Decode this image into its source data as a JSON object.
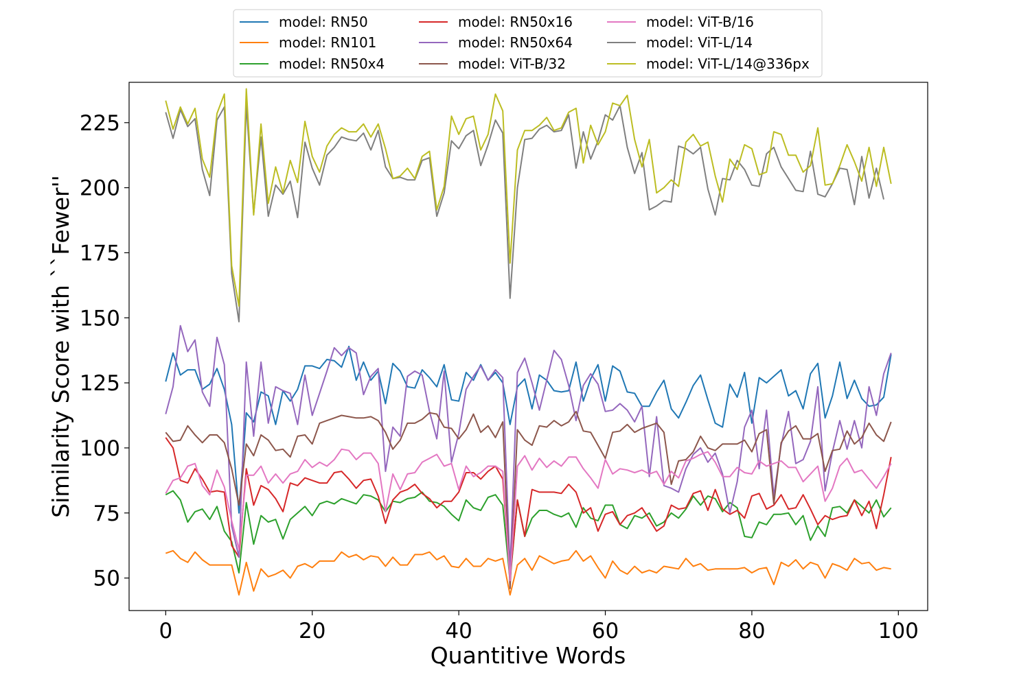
{
  "chart_data": {
    "type": "line",
    "title": "",
    "xlabel": "Quantitive Words",
    "ylabel": "Similarity Score with ``Fewer''",
    "xlim": [
      -5,
      104
    ],
    "ylim": [
      37.5,
      240.5
    ],
    "xticks": [
      0,
      20,
      40,
      60,
      80,
      100
    ],
    "yticks": [
      50,
      75,
      100,
      125,
      150,
      175,
      200,
      225
    ],
    "grid": false,
    "legend_position": "top-center, above plot, 3 columns",
    "series": [
      {
        "name": "model: RN50",
        "color": "#1f77b4",
        "values": [
          125.5,
          136.5,
          128,
          130,
          130,
          122.5,
          124.5,
          130.5,
          122.5,
          109,
          75,
          113.5,
          110,
          121.5,
          120,
          109,
          122,
          118,
          122.5,
          131.5,
          131.5,
          130.5,
          134,
          133.5,
          131,
          139,
          126,
          133,
          126,
          129.5,
          117,
          132.5,
          129.5,
          123.5,
          123,
          130,
          127,
          123.5,
          132,
          118.5,
          118,
          129,
          126,
          132,
          126,
          129,
          125,
          109,
          123.5,
          126.5,
          115,
          128,
          126,
          122,
          121.5,
          122,
          133,
          118,
          126.5,
          132,
          118,
          131.5,
          129.5,
          121.5,
          121,
          116,
          116,
          121.5,
          126,
          115,
          111.5,
          117.5,
          124,
          128,
          118.5,
          109.5,
          108,
          124.5,
          119.5,
          129,
          109.5,
          127,
          125,
          127.5,
          130,
          120,
          122,
          115,
          128.5,
          132.5,
          111.5,
          120,
          133,
          119,
          126,
          119,
          116,
          116.5,
          119.5,
          136
        ]
      },
      {
        "name": "model: RN101",
        "color": "#ff7f0e",
        "values": [
          59.5,
          60.5,
          57.5,
          56,
          60,
          57,
          55,
          55,
          55,
          55,
          43.5,
          56,
          45,
          53.5,
          50.5,
          51.5,
          53,
          50,
          54.5,
          55.5,
          54,
          56.5,
          56.5,
          56.5,
          60,
          58,
          59,
          57,
          58.5,
          58,
          54.5,
          58,
          55,
          55,
          59,
          59,
          60,
          57,
          58.5,
          54.5,
          54,
          57.5,
          54.5,
          54.5,
          57.5,
          56.5,
          57.5,
          43.5,
          55,
          57.5,
          53,
          58.5,
          57,
          55.5,
          56.5,
          57,
          60.5,
          56.5,
          58.5,
          54,
          50,
          56.5,
          53,
          51.5,
          54.5,
          52,
          53,
          52,
          54.5,
          54,
          53.5,
          57.5,
          54.5,
          55.5,
          53,
          53.5,
          53.5,
          53.5,
          53.5,
          54,
          52,
          53.5,
          54,
          47.5,
          56,
          54.5,
          57,
          53.5,
          56,
          55,
          50,
          55.5,
          54.5,
          53,
          57.5,
          55.5,
          56,
          53,
          54,
          53.5
        ]
      },
      {
        "name": "model: RN50x4",
        "color": "#2ca02c",
        "values": [
          82,
          83.5,
          80,
          71.5,
          75.5,
          76.5,
          72.5,
          77.5,
          68,
          64,
          52,
          79,
          63,
          74,
          71.5,
          72.5,
          65,
          72.5,
          75,
          77.5,
          74,
          78.5,
          79.5,
          78.5,
          80.5,
          79.5,
          78.5,
          82,
          81.5,
          80,
          75.5,
          79.5,
          79,
          80.5,
          81,
          83,
          79.5,
          79,
          77.5,
          74.5,
          72,
          80,
          77,
          76,
          81,
          82,
          78,
          49,
          80,
          66,
          73,
          76,
          76,
          74.5,
          73.5,
          75,
          69.5,
          77,
          73,
          72,
          78,
          78,
          70.5,
          69,
          74,
          73,
          75,
          70,
          71.5,
          75,
          73,
          76.5,
          81.5,
          78,
          81.5,
          80.5,
          75.5,
          79,
          77,
          66,
          65.5,
          71.5,
          70.5,
          74.5,
          74.5,
          75,
          70.5,
          74,
          64.5,
          70,
          66,
          77,
          77.5,
          75,
          80,
          77.5,
          75,
          80,
          73.5,
          77
        ]
      },
      {
        "name": "model: RN50x16",
        "color": "#d62728",
        "values": [
          104,
          100,
          87.5,
          86.5,
          92,
          88,
          83,
          83.5,
          83,
          62.5,
          58,
          92,
          78,
          85.5,
          84,
          80.5,
          75.5,
          86.5,
          85.5,
          88.5,
          87.5,
          86.5,
          86.5,
          90.5,
          91,
          88,
          84.5,
          87.5,
          88,
          81.5,
          71,
          80,
          83,
          84,
          86,
          82.5,
          80.5,
          77,
          79.5,
          79.5,
          83,
          90.5,
          90.5,
          88,
          91,
          93,
          88,
          50,
          80,
          66,
          84,
          83,
          83,
          83,
          82.5,
          86,
          83,
          75,
          77,
          68,
          74.5,
          75.5,
          70.5,
          74,
          75,
          77,
          72.5,
          68,
          70,
          78,
          76.5,
          77,
          82.5,
          83.5,
          76,
          84,
          76.5,
          74.5,
          76,
          73,
          81.5,
          82.5,
          76.5,
          78,
          82,
          76.5,
          77,
          82,
          76.5,
          70.5,
          74,
          72.5,
          73.5,
          74,
          80,
          74,
          79.5,
          69,
          82,
          96.5
        ]
      },
      {
        "name": "model: RN50x64",
        "color": "#9467bd",
        "values": [
          113,
          123.5,
          147,
          137,
          141.5,
          121.5,
          116,
          142.5,
          132,
          70,
          58,
          133,
          104.5,
          133,
          109.5,
          123.5,
          122,
          121,
          109,
          128,
          112.5,
          121,
          129.5,
          138.5,
          135.5,
          138.5,
          136.5,
          120.5,
          127.5,
          130.5,
          91,
          108,
          104.5,
          127.5,
          129.5,
          128,
          114,
          103.5,
          129.5,
          94.5,
          105.5,
          122.5,
          127.5,
          131.5,
          126,
          130,
          127,
          53,
          129,
          134.5,
          125,
          114.5,
          126,
          137.5,
          134,
          124,
          110.5,
          124,
          128.5,
          124.5,
          114,
          114.5,
          117,
          114.5,
          110,
          116,
          89,
          112,
          85.5,
          84.5,
          83,
          92,
          97.5,
          100,
          94.5,
          98,
          90,
          75,
          87,
          108,
          114.5,
          92,
          114.5,
          81.5,
          101,
          114,
          94,
          95.5,
          102.5,
          123.5,
          83.5,
          98.5,
          110.5,
          99.5,
          110.5,
          100,
          123.5,
          112.5,
          128.5,
          136.5
        ]
      },
      {
        "name": "model: ViT-B/32",
        "color": "#8c564b",
        "values": [
          106,
          102.5,
          103,
          108.5,
          105,
          102,
          105,
          105,
          102,
          92,
          78,
          101.5,
          97,
          105,
          103,
          99,
          99.5,
          96.5,
          104.5,
          105,
          101.5,
          109.5,
          110.5,
          111.5,
          112.5,
          112,
          111.5,
          111.5,
          112,
          110.5,
          106,
          99.5,
          103,
          109.5,
          109.5,
          111,
          113.5,
          113,
          108,
          107.5,
          103.5,
          107,
          113,
          106,
          108.5,
          104,
          110,
          46,
          107,
          103,
          101,
          108.5,
          108,
          110.5,
          108.5,
          110,
          114,
          106.5,
          106,
          101,
          96,
          106,
          106.5,
          109,
          106,
          107.5,
          108.5,
          109.5,
          106,
          86,
          95,
          95.5,
          98.5,
          104.5,
          100,
          99,
          101.5,
          101.5,
          101.5,
          103,
          98.5,
          105.5,
          107,
          78.5,
          102,
          106.5,
          108.5,
          103.5,
          103.5,
          105.5,
          91,
          99,
          99.5,
          106.5,
          101.5,
          104,
          109.5,
          105,
          102.5,
          110
        ]
      },
      {
        "name": "model: ViT-B/16",
        "color": "#e377c2",
        "values": [
          82.5,
          87.5,
          88.5,
          93,
          94,
          85.5,
          82,
          91.5,
          85,
          72,
          61,
          89.5,
          89.5,
          93,
          86.5,
          90,
          86.5,
          90,
          91,
          95.5,
          92.5,
          94.5,
          93,
          95.5,
          99.5,
          99,
          95.5,
          98,
          98,
          94,
          75.5,
          90,
          84,
          90,
          90.5,
          94.5,
          96,
          97.5,
          93,
          94,
          84,
          93,
          89,
          90.5,
          93,
          93,
          91,
          49,
          93,
          97,
          91.5,
          96,
          92.5,
          95,
          93,
          96.5,
          96.5,
          92,
          88.5,
          84.5,
          95.5,
          90,
          92,
          91.5,
          90.5,
          91.5,
          90,
          91,
          86,
          91,
          88.5,
          95,
          96,
          97.5,
          98.5,
          94.5,
          89,
          89,
          92.5,
          90.5,
          90,
          95,
          93,
          94,
          95,
          92.5,
          92.5,
          87,
          90,
          93,
          79.5,
          84.5,
          93,
          96,
          90.5,
          91.5,
          88,
          84.5,
          89,
          94
        ]
      },
      {
        "name": "model: ViT-L/14",
        "color": "#7f7f7f",
        "values": [
          229,
          219,
          230,
          223.5,
          226.5,
          207,
          197,
          226,
          231,
          167,
          148.5,
          232,
          190,
          219.5,
          189,
          201,
          197.5,
          202.5,
          188.5,
          217.5,
          207.5,
          201,
          212.5,
          215.5,
          219.5,
          218.5,
          218,
          221,
          214.5,
          222,
          208,
          203.5,
          204,
          203,
          203,
          210.5,
          211.5,
          189,
          198,
          218,
          215,
          220,
          222,
          208.5,
          216.5,
          226,
          221,
          157.5,
          200,
          218.5,
          219,
          222.5,
          224,
          221.5,
          222,
          228,
          207.5,
          221.5,
          211,
          218,
          228,
          226,
          231.5,
          215.5,
          205.5,
          213.5,
          191.5,
          193,
          195,
          194.5,
          216,
          215,
          213,
          215.5,
          199.5,
          189.5,
          203.5,
          203,
          210.5,
          207,
          201,
          200.5,
          213,
          215.5,
          208,
          203.5,
          199,
          198.5,
          214,
          197.5,
          196.5,
          201.5,
          207.5,
          207,
          193.5,
          212,
          196,
          207.5,
          195.5
        ]
      },
      {
        "name": "model: ViT-L/14@336px",
        "color": "#bcbd22",
        "values": [
          233.5,
          222.5,
          231,
          224.5,
          230.5,
          211,
          204,
          228.5,
          236,
          170,
          154.5,
          238,
          189.5,
          224.5,
          194,
          208,
          198,
          210.5,
          202,
          225.5,
          212,
          206,
          216,
          220.5,
          223,
          221.5,
          221.5,
          224.5,
          219.5,
          224.5,
          215,
          203.5,
          204.5,
          207.5,
          203.5,
          212,
          214,
          191.5,
          200.5,
          227.5,
          220.5,
          226.5,
          227.5,
          214.5,
          220.5,
          236,
          229.5,
          171,
          214.5,
          222,
          222,
          224,
          227,
          222,
          223,
          229,
          230.5,
          209.5,
          224,
          216.5,
          221.5,
          232.5,
          231.5,
          235.5,
          218.5,
          208,
          218.5,
          198,
          200,
          203,
          200.5,
          217.5,
          220.5,
          216,
          217.5,
          204.5,
          194.5,
          211,
          207,
          216.5,
          215,
          205,
          206,
          221.5,
          220.5,
          212.5,
          212.5,
          206,
          208.5,
          223,
          201,
          201.5,
          208.5,
          216.5,
          210,
          202.5,
          215.5,
          200.5,
          215.5,
          201.5
        ]
      }
    ]
  }
}
